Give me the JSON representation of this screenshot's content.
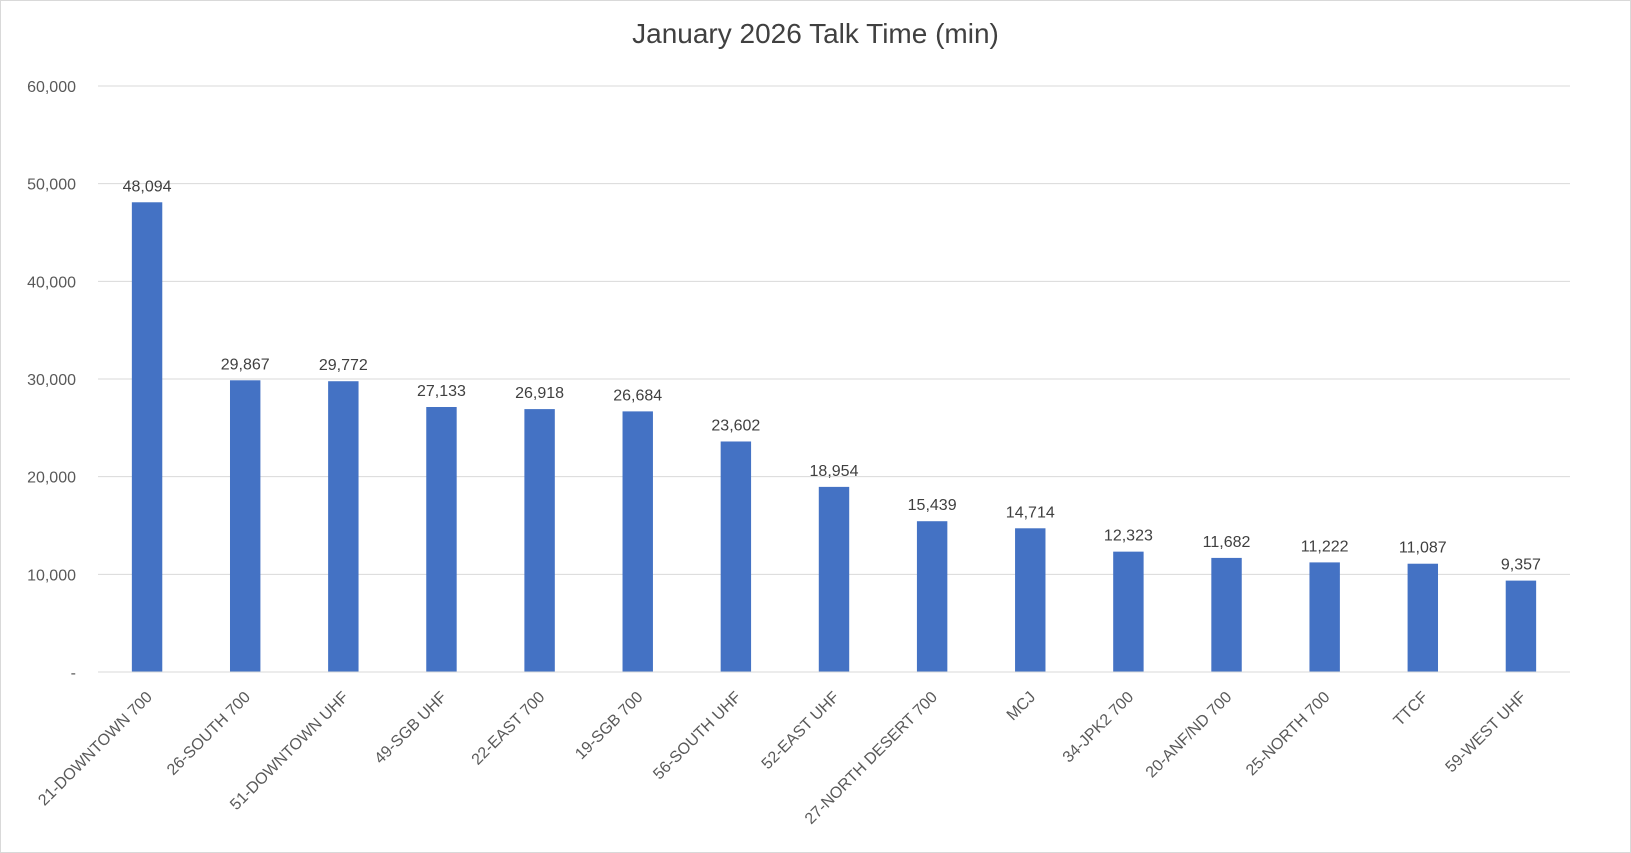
{
  "chart_data": {
    "type": "bar",
    "title": "January 2026 Talk Time (min)",
    "xlabel": "",
    "ylabel": "",
    "ylim": [
      0,
      60000
    ],
    "yticks": [
      0,
      10000,
      20000,
      30000,
      40000,
      50000,
      60000
    ],
    "ytick_labels": [
      "-",
      "10,000",
      "20,000",
      "30,000",
      "40,000",
      "50,000",
      "60,000"
    ],
    "grid": true,
    "legend": "none",
    "bar_color": "#4472C4",
    "categories": [
      "21-DOWNTOWN 700",
      "26-SOUTH 700",
      "51-DOWNTOWN UHF",
      "49-SGB UHF",
      "22-EAST 700",
      "19-SGB 700",
      "56-SOUTH UHF",
      "52-EAST UHF",
      "27-NORTH DESERT 700",
      "MCJ",
      "34-JPK2 700",
      "20-ANF/ND 700",
      "25-NORTH 700",
      "TTCF",
      "59-WEST UHF"
    ],
    "values": [
      48094,
      29867,
      29772,
      27133,
      26918,
      26684,
      23602,
      18954,
      15439,
      14714,
      12323,
      11682,
      11222,
      11087,
      9357
    ],
    "data_labels": [
      "48,094",
      "29,867",
      "29,772",
      "27,133",
      "26,918",
      "26,684",
      "23,602",
      "18,954",
      "15,439",
      "14,714",
      "12,323",
      "11,682",
      "11,222",
      "11,087",
      "9,357"
    ]
  }
}
